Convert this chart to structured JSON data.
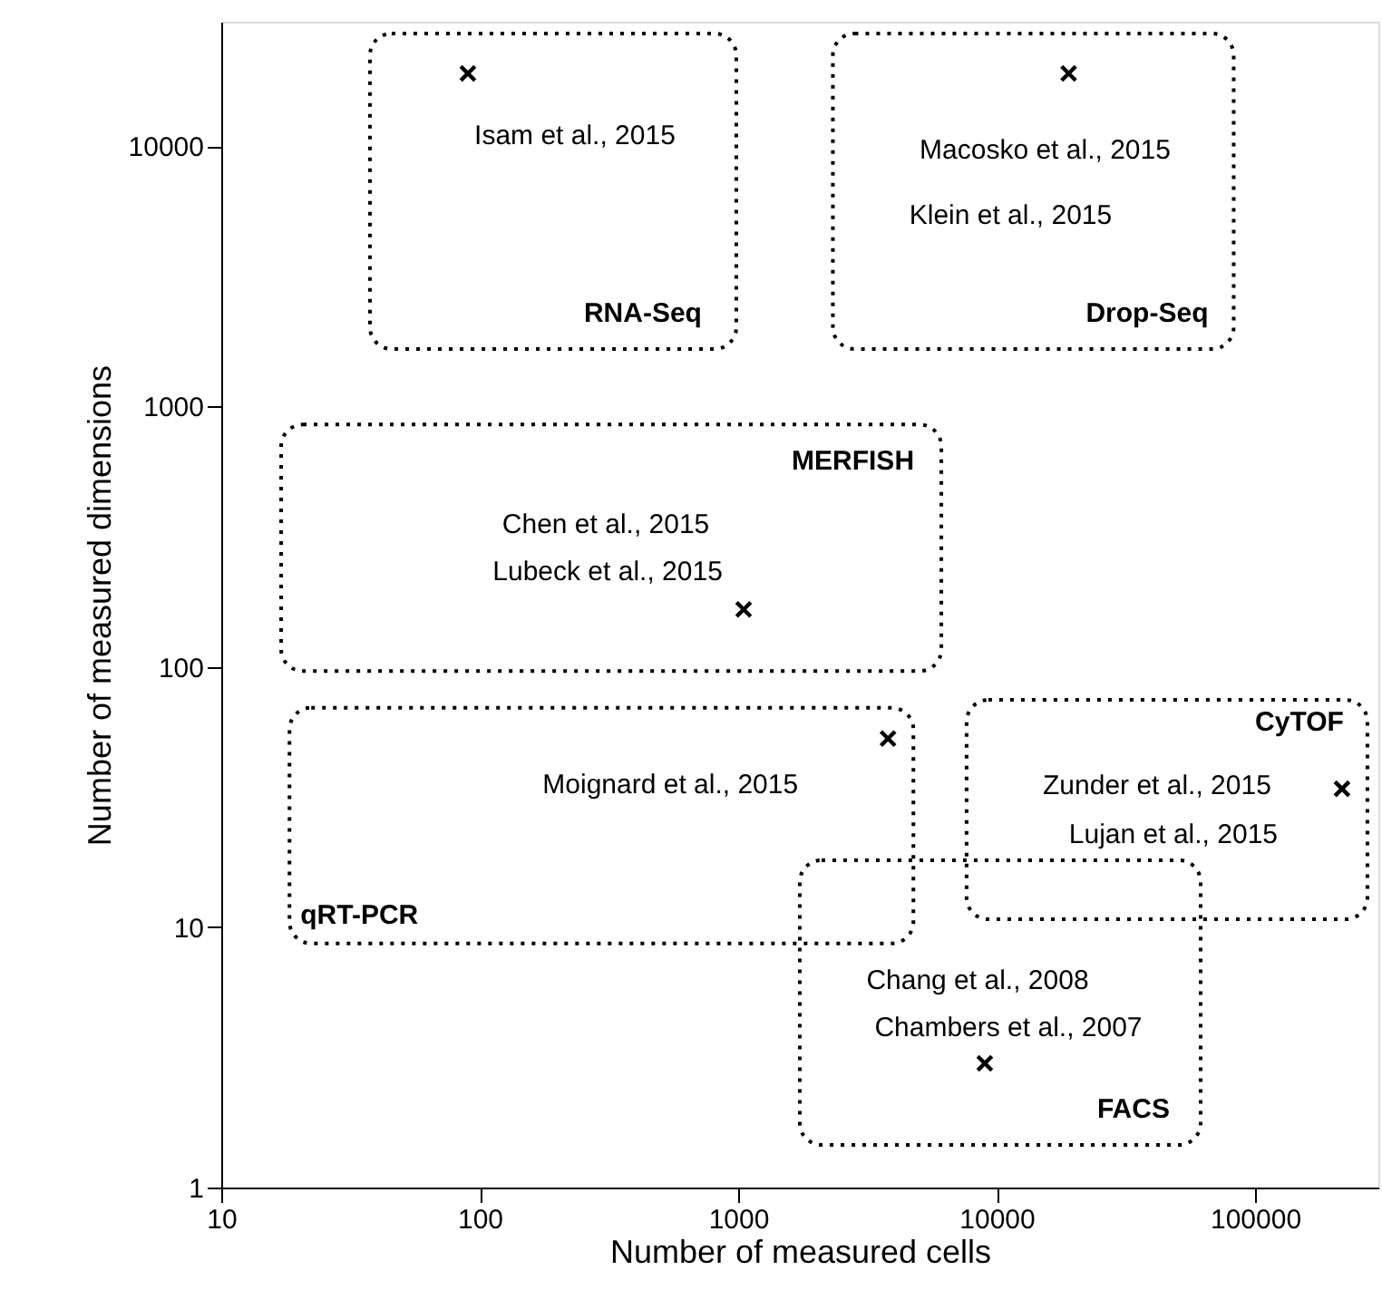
{
  "chart_data": {
    "type": "scatter",
    "xlabel": "Number of measured cells",
    "ylabel": "Number of measured dimensions",
    "log": "xy",
    "xlim": [
      10,
      300000
    ],
    "ylim": [
      1,
      30000
    ],
    "xticks": [
      10,
      100,
      1000,
      10000,
      100000
    ],
    "yticks": [
      1,
      10,
      100,
      1000,
      10000
    ],
    "grid": false,
    "marker": "cross",
    "series": [
      {
        "color": "#000000",
        "x": [
          90,
          19000,
          1050,
          3800,
          217000,
          9000
        ],
        "values": [
          19000,
          19000,
          166,
          53,
          34,
          3
        ]
      }
    ],
    "annotations": [
      "RNA-Seq",
      "Isam et al., 2015",
      "Drop-Seq",
      "Macosko et al., 2015",
      "Klein et al., 2015",
      "MERFISH",
      "Chen et al., 2015",
      "Lubeck et al., 2015",
      "qRT-PCR",
      "Moignard et al., 2015",
      "CyTOF",
      "Zunder et al., 2015",
      "Lujan et al., 2015",
      "FACS",
      "Chang et al., 2008",
      "Chambers et al., 2007"
    ]
  }
}
